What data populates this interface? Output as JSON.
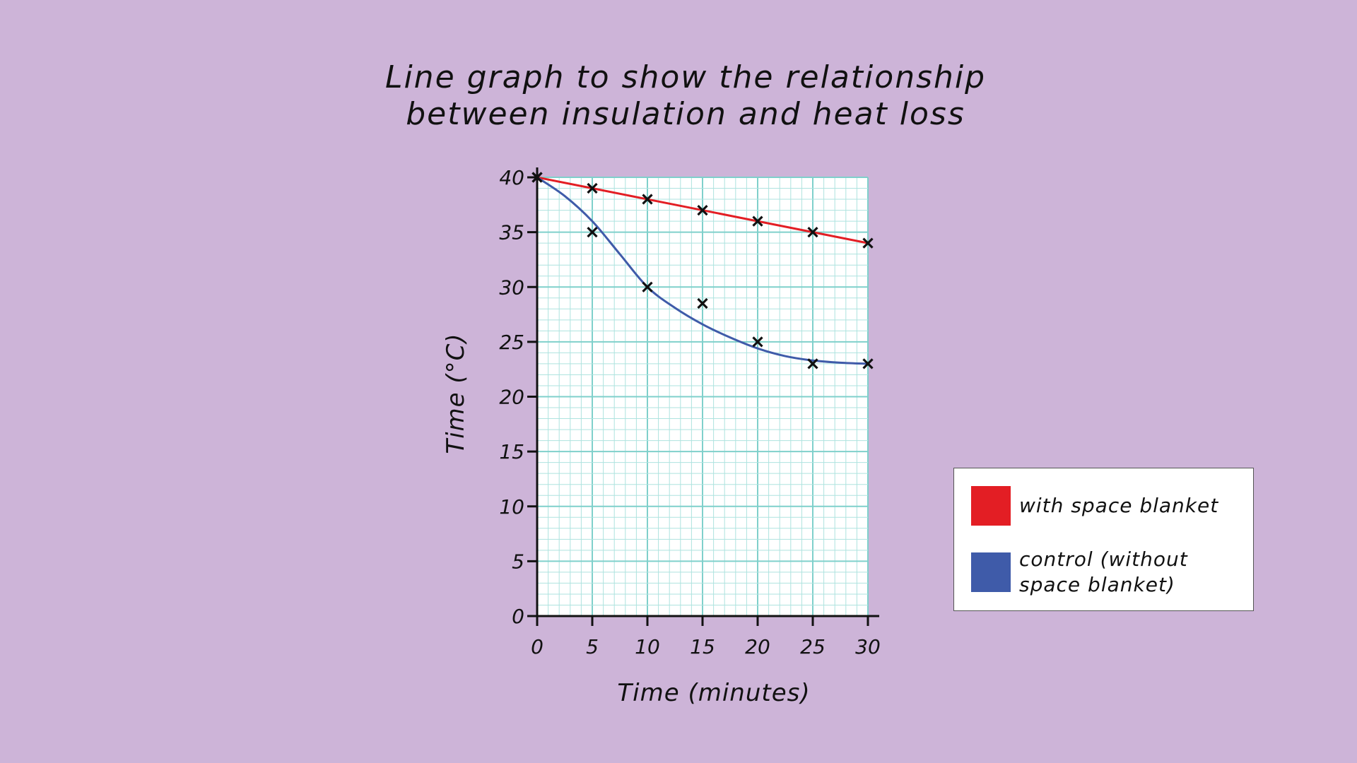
{
  "title": {
    "line1": "Line graph to show the relationship",
    "line2": "between insulation and heat loss"
  },
  "chart_data": {
    "type": "line",
    "xlabel": "Time (minutes)",
    "ylabel": "Time (°C)",
    "xlim": [
      0,
      30
    ],
    "ylim": [
      0,
      40
    ],
    "x_ticks": [
      0,
      5,
      10,
      15,
      20,
      25,
      30
    ],
    "y_ticks": [
      0,
      5,
      10,
      15,
      20,
      25,
      30,
      35,
      40
    ],
    "grid": true,
    "series": [
      {
        "name": "with space blanket",
        "color": "#e31e24",
        "marker": "x",
        "line": "straight",
        "points": [
          [
            0,
            40
          ],
          [
            5,
            39
          ],
          [
            10,
            38
          ],
          [
            15,
            37
          ],
          [
            20,
            36
          ],
          [
            25,
            35
          ],
          [
            30,
            34
          ]
        ]
      },
      {
        "name": "control (without space blanket)",
        "color": "#3f5ba9",
        "marker": "x",
        "line": "curve",
        "points": [
          [
            0,
            40
          ],
          [
            5,
            35
          ],
          [
            10,
            30
          ],
          [
            15,
            28.5
          ],
          [
            20,
            25
          ],
          [
            25,
            23
          ],
          [
            30,
            23
          ]
        ],
        "curve_points": [
          [
            0,
            40
          ],
          [
            2.5,
            38.3
          ],
          [
            5,
            36
          ],
          [
            7.5,
            33
          ],
          [
            10,
            30
          ],
          [
            12.5,
            28.1
          ],
          [
            15,
            26.6
          ],
          [
            17.5,
            25.4
          ],
          [
            20,
            24.4
          ],
          [
            22.5,
            23.7
          ],
          [
            25,
            23.3
          ],
          [
            27.5,
            23.1
          ],
          [
            30,
            23
          ]
        ]
      }
    ],
    "legend_position": "bottom-right"
  },
  "colors": {
    "background": "#cdb4d8",
    "grid_minor": "#aee3df",
    "grid_major": "#7fd0cb",
    "axis": "#111111"
  }
}
